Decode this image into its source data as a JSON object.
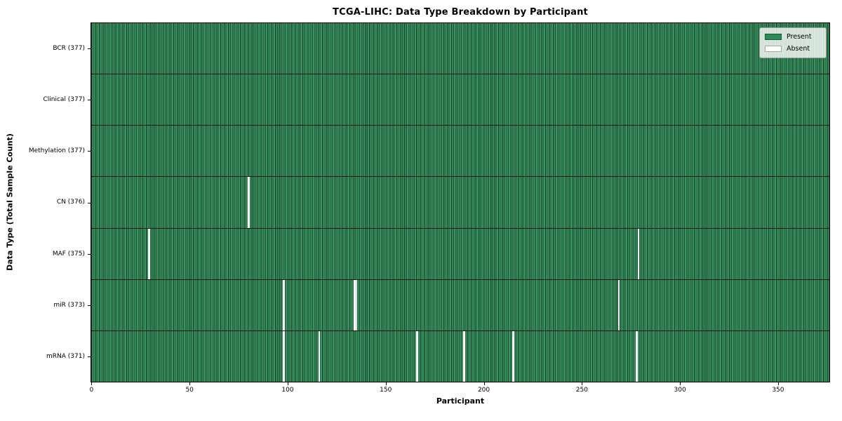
{
  "title": "TCGA-LIHC: Data Type Breakdown by Participant",
  "legend": {
    "present_label": "Present",
    "absent_label": "Absent"
  },
  "colors": {
    "present": "#2e8b57",
    "absent": "#ffffff",
    "bar_edge": "#10301f"
  },
  "chart_data": {
    "type": "heatmap",
    "title": "TCGA-LIHC: Data Type Breakdown by Participant",
    "xlabel": "Participant",
    "ylabel": "Data Type (Total Sample Count)",
    "n_participants": 377,
    "x_ticks": [
      0,
      50,
      100,
      150,
      200,
      250,
      300,
      350
    ],
    "xlim": [
      0,
      377
    ],
    "grid": false,
    "legend_position": "upper right",
    "legend_entries": [
      "Present",
      "Absent"
    ],
    "rows": [
      {
        "label": "BCR (377)",
        "data_type": "BCR",
        "present_count": 377,
        "absent_participants": []
      },
      {
        "label": "Clinical (377)",
        "data_type": "Clinical",
        "present_count": 377,
        "absent_participants": []
      },
      {
        "label": "Methylation (377)",
        "data_type": "Methylation",
        "present_count": 377,
        "absent_participants": []
      },
      {
        "label": "CN (376)",
        "data_type": "CN",
        "present_count": 376,
        "absent_participants": [
          80
        ]
      },
      {
        "label": "MAF (375)",
        "data_type": "MAF",
        "present_count": 375,
        "absent_participants": [
          29,
          279
        ]
      },
      {
        "label": "miR (373)",
        "data_type": "miR",
        "present_count": 373,
        "absent_participants": [
          98,
          134,
          135,
          269
        ]
      },
      {
        "label": "mRNA (371)",
        "data_type": "mRNA",
        "present_count": 371,
        "absent_participants": [
          98,
          116,
          166,
          190,
          215,
          278
        ]
      }
    ]
  }
}
